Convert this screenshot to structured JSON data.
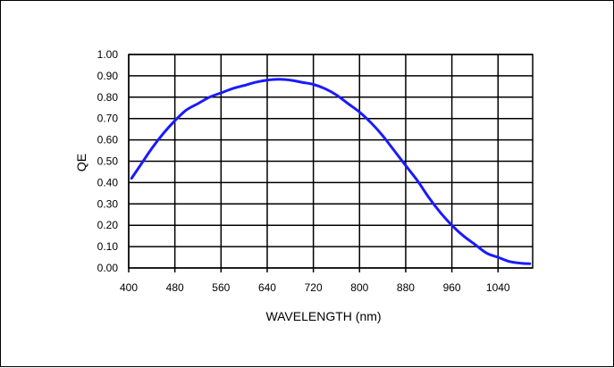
{
  "chart_data": {
    "type": "line",
    "xlabel": "WAVELENGTH (nm)",
    "ylabel": "QE",
    "xlim": [
      400,
      1100
    ],
    "ylim": [
      0.0,
      1.0
    ],
    "x_ticks": [
      400,
      480,
      560,
      640,
      720,
      800,
      880,
      960,
      1040
    ],
    "x_tick_labels": [
      "400",
      "480",
      "560",
      "640",
      "720",
      "800",
      "880",
      "960",
      "1040"
    ],
    "y_ticks": [
      0.0,
      0.1,
      0.2,
      0.3,
      0.4,
      0.5,
      0.6,
      0.7,
      0.8,
      0.9,
      1.0
    ],
    "y_tick_labels": [
      "0.00",
      "0.10",
      "0.20",
      "0.30",
      "0.40",
      "0.50",
      "0.60",
      "0.70",
      "0.80",
      "0.90",
      "1.00"
    ],
    "grid": true,
    "legend": "none",
    "series": [
      {
        "color": "#1a1aff",
        "x": [
          405,
          420,
          440,
          460,
          480,
          500,
          520,
          540,
          560,
          580,
          600,
          620,
          640,
          660,
          680,
          700,
          720,
          740,
          760,
          780,
          800,
          820,
          840,
          860,
          880,
          900,
          920,
          940,
          960,
          980,
          1000,
          1020,
          1040,
          1060,
          1080,
          1095
        ],
        "y": [
          0.42,
          0.48,
          0.56,
          0.63,
          0.69,
          0.74,
          0.77,
          0.8,
          0.82,
          0.84,
          0.855,
          0.87,
          0.88,
          0.884,
          0.88,
          0.87,
          0.86,
          0.84,
          0.81,
          0.77,
          0.73,
          0.68,
          0.62,
          0.55,
          0.48,
          0.41,
          0.33,
          0.26,
          0.2,
          0.15,
          0.11,
          0.07,
          0.05,
          0.03,
          0.022,
          0.02
        ]
      }
    ]
  }
}
